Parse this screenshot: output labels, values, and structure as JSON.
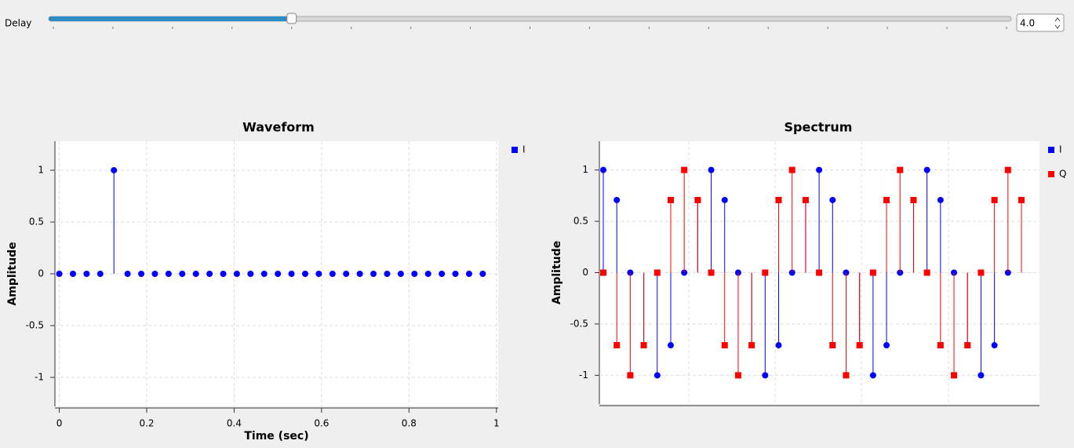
{
  "slider": {
    "label": "Delay",
    "value": 4,
    "value_label": "4.0",
    "range": [
      0,
      16
    ]
  },
  "chart_data": [
    {
      "type": "stem",
      "title": "Waveform",
      "xlabel": "Time (sec)",
      "ylabel": "Amplitude",
      "x": [
        0,
        0.03125,
        0.0625,
        0.09375,
        0.125,
        0.15625,
        0.1875,
        0.21875,
        0.25,
        0.28125,
        0.3125,
        0.34375,
        0.375,
        0.40625,
        0.4375,
        0.46875,
        0.5,
        0.53125,
        0.5625,
        0.59375,
        0.625,
        0.65625,
        0.6875,
        0.71875,
        0.75,
        0.78125,
        0.8125,
        0.84375,
        0.875,
        0.90625,
        0.9375,
        0.96875
      ],
      "series": [
        {
          "name": "I",
          "color": "#0000ff",
          "marker": "circle",
          "values": [
            0,
            0,
            0,
            0,
            1,
            0,
            0,
            0,
            0,
            0,
            0,
            0,
            0,
            0,
            0,
            0,
            0,
            0,
            0,
            0,
            0,
            0,
            0,
            0,
            0,
            0,
            0,
            0,
            0,
            0,
            0,
            0
          ]
        }
      ],
      "xlim": [
        -0.01,
        1.004
      ],
      "xticks": [
        0,
        0.2,
        0.4,
        0.6,
        0.8,
        1
      ],
      "ylim": [
        -1.28,
        1.28
      ],
      "yticks": [
        -1,
        -0.5,
        0,
        0.5,
        1
      ],
      "grid": true
    },
    {
      "type": "stem",
      "title": "Spectrum",
      "ylabel": "Amplitude",
      "categories": [
        null,
        null,
        null,
        null,
        null,
        null,
        null,
        null,
        null,
        null,
        null,
        null,
        null,
        null,
        null,
        null,
        null,
        null,
        null,
        null,
        null,
        null,
        null,
        null,
        null,
        null,
        null,
        null,
        null,
        null,
        null,
        null
      ],
      "series": [
        {
          "name": "I",
          "color": "#0000ff",
          "marker": "circle",
          "values": [
            1,
            0.707,
            0,
            -0.707,
            -1,
            -0.707,
            0,
            0.707,
            1,
            0.707,
            0,
            -0.707,
            -1,
            -0.707,
            0,
            0.707,
            1,
            0.707,
            0,
            -0.707,
            -1,
            -0.707,
            0,
            0.707,
            1,
            0.707,
            0,
            -0.707,
            -1,
            -0.707,
            0,
            0.707
          ]
        },
        {
          "name": "Q",
          "color": "#ff0000",
          "marker": "square",
          "values": [
            0,
            -0.707,
            -1,
            -0.707,
            0,
            0.707,
            1,
            0.707,
            0,
            -0.707,
            -1,
            -0.707,
            0,
            0.707,
            1,
            0.707,
            0,
            -0.707,
            -1,
            -0.707,
            0,
            0.707,
            1,
            0.707,
            0,
            -0.707,
            -1,
            -0.707,
            0,
            0.707,
            1,
            0.707
          ]
        }
      ],
      "ylim": [
        -1.28,
        1.28
      ],
      "yticks": [
        -1,
        -0.5,
        0,
        0.5,
        1
      ],
      "grid": true
    }
  ]
}
